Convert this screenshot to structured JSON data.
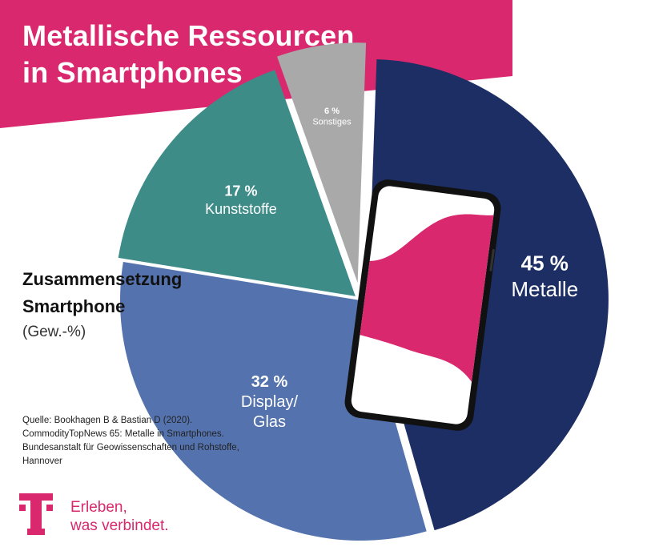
{
  "header": {
    "title_line1": "Metallische Ressourcen",
    "title_line2": "in Smartphones"
  },
  "subtitle": {
    "line1": "Zusammensetzung",
    "line2": "Smartphone",
    "unit": "(Gew.-%)"
  },
  "source": {
    "line1": "Quelle: Bookhagen B & Bastian D (2020).",
    "line2": "CommodityTopNews 65: Metalle in Smartphones.",
    "line3": "Bundesanstalt für Geowissenschaften und Rohstoffe,",
    "line4": "Hannover"
  },
  "brand": {
    "logo_icon": "telekom-t-logo-icon",
    "slogan_line1": "Erleben,",
    "slogan_line2": "was verbindet."
  },
  "colors": {
    "magenta": "#d9286e",
    "metals": "#1c2e63",
    "display": "#5473ae",
    "plastics": "#3d8c88",
    "other": "#a9a9a9"
  },
  "chart_data": {
    "type": "pie",
    "series": [
      {
        "value": 45,
        "value_label": "45 %",
        "label_lines": [
          "Metalle"
        ],
        "color": "#1c2e63"
      },
      {
        "value": 32,
        "value_label": "32 %",
        "label_lines": [
          "Display/",
          "Glas"
        ],
        "color": "#5473ae"
      },
      {
        "value": 17,
        "value_label": "17 %",
        "label_lines": [
          "Kunststoffe"
        ],
        "color": "#3d8c88"
      },
      {
        "value": 6,
        "value_label": "6 %",
        "label_lines": [
          "Sonstiges"
        ],
        "color": "#a9a9a9"
      }
    ]
  }
}
